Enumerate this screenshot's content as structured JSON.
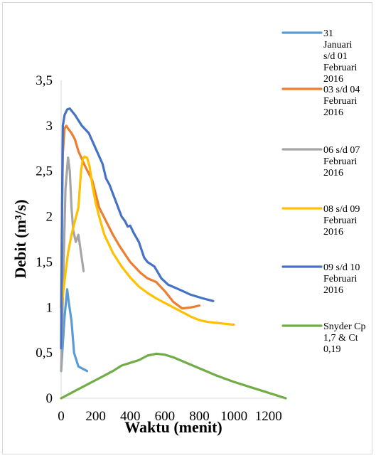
{
  "chart_data": {
    "type": "line",
    "xlabel": "Waktu (menit)",
    "ylabel": "Debit (m³/s)",
    "xlim": [
      0,
      1300
    ],
    "ylim": [
      0,
      3.5
    ],
    "x_ticks": [
      "0",
      "200",
      "400",
      "600",
      "800",
      "1000",
      "1200"
    ],
    "y_ticks": [
      "0",
      "0,5",
      "1",
      "1,5",
      "2",
      "2,5",
      "3",
      "3,5"
    ],
    "grid": false,
    "legend_position": "right",
    "series": [
      {
        "name": "31 Januari s/d 01 Februari 2016",
        "color": "#5b9bd5",
        "points": [
          [
            0,
            0.3
          ],
          [
            10,
            0.6
          ],
          [
            20,
            0.9
          ],
          [
            35,
            1.2
          ],
          [
            45,
            1.05
          ],
          [
            60,
            0.85
          ],
          [
            75,
            0.5
          ],
          [
            100,
            0.35
          ],
          [
            150,
            0.3
          ]
        ]
      },
      {
        "name": "03 s/d 04 Februari 2016",
        "color": "#ed7d31",
        "points": [
          [
            0,
            1.0
          ],
          [
            5,
            2.0
          ],
          [
            10,
            2.7
          ],
          [
            20,
            2.97
          ],
          [
            30,
            3.0
          ],
          [
            40,
            2.97
          ],
          [
            60,
            2.92
          ],
          [
            80,
            2.85
          ],
          [
            100,
            2.72
          ],
          [
            140,
            2.55
          ],
          [
            180,
            2.4
          ],
          [
            220,
            2.1
          ],
          [
            260,
            1.95
          ],
          [
            300,
            1.8
          ],
          [
            340,
            1.67
          ],
          [
            400,
            1.5
          ],
          [
            460,
            1.38
          ],
          [
            500,
            1.32
          ],
          [
            550,
            1.28
          ],
          [
            600,
            1.18
          ],
          [
            650,
            1.06
          ],
          [
            700,
            0.99
          ],
          [
            750,
            1.0
          ],
          [
            800,
            1.02
          ]
        ]
      },
      {
        "name": "06 s/d 07 Februari 2016",
        "color": "#a5a5a5",
        "points": [
          [
            0,
            0.3
          ],
          [
            15,
            1.5
          ],
          [
            25,
            2.3
          ],
          [
            40,
            2.65
          ],
          [
            50,
            2.5
          ],
          [
            60,
            2.1
          ],
          [
            70,
            1.85
          ],
          [
            85,
            1.72
          ],
          [
            100,
            1.8
          ],
          [
            115,
            1.6
          ],
          [
            130,
            1.4
          ]
        ]
      },
      {
        "name": "08 s/d 09 Februari 2016",
        "color": "#ffc000",
        "points": [
          [
            0,
            0.95
          ],
          [
            20,
            1.3
          ],
          [
            40,
            1.6
          ],
          [
            60,
            1.8
          ],
          [
            80,
            1.95
          ],
          [
            100,
            2.1
          ],
          [
            115,
            2.5
          ],
          [
            125,
            2.63
          ],
          [
            135,
            2.66
          ],
          [
            150,
            2.65
          ],
          [
            165,
            2.55
          ],
          [
            180,
            2.35
          ],
          [
            200,
            2.15
          ],
          [
            220,
            2.0
          ],
          [
            250,
            1.8
          ],
          [
            300,
            1.6
          ],
          [
            350,
            1.45
          ],
          [
            400,
            1.33
          ],
          [
            450,
            1.23
          ],
          [
            500,
            1.16
          ],
          [
            550,
            1.1
          ],
          [
            600,
            1.05
          ],
          [
            650,
            1.0
          ],
          [
            700,
            0.95
          ],
          [
            750,
            0.9
          ],
          [
            800,
            0.86
          ],
          [
            850,
            0.84
          ],
          [
            900,
            0.83
          ],
          [
            950,
            0.82
          ],
          [
            1000,
            0.81
          ]
        ]
      },
      {
        "name": "09 s/d 10 Februari 2016",
        "color": "#4472c4",
        "points": [
          [
            0,
            0.55
          ],
          [
            5,
            2.0
          ],
          [
            10,
            3.0
          ],
          [
            20,
            3.12
          ],
          [
            35,
            3.18
          ],
          [
            50,
            3.19
          ],
          [
            80,
            3.12
          ],
          [
            120,
            3.0
          ],
          [
            160,
            2.92
          ],
          [
            200,
            2.75
          ],
          [
            240,
            2.58
          ],
          [
            260,
            2.42
          ],
          [
            280,
            2.35
          ],
          [
            320,
            2.15
          ],
          [
            350,
            2.0
          ],
          [
            370,
            1.95
          ],
          [
            385,
            1.89
          ],
          [
            400,
            1.9
          ],
          [
            420,
            1.82
          ],
          [
            450,
            1.72
          ],
          [
            480,
            1.55
          ],
          [
            500,
            1.5
          ],
          [
            540,
            1.45
          ],
          [
            580,
            1.32
          ],
          [
            620,
            1.25
          ],
          [
            680,
            1.2
          ],
          [
            750,
            1.14
          ],
          [
            820,
            1.1
          ],
          [
            880,
            1.07
          ]
        ]
      },
      {
        "name": "Snyder Cp 1,7 & Ct 0,19",
        "color": "#70ad47",
        "points": [
          [
            0,
            0
          ],
          [
            100,
            0.1
          ],
          [
            200,
            0.2
          ],
          [
            300,
            0.3
          ],
          [
            350,
            0.36
          ],
          [
            400,
            0.39
          ],
          [
            450,
            0.42
          ],
          [
            500,
            0.47
          ],
          [
            550,
            0.49
          ],
          [
            600,
            0.48
          ],
          [
            650,
            0.45
          ],
          [
            700,
            0.41
          ],
          [
            800,
            0.33
          ],
          [
            900,
            0.25
          ],
          [
            1000,
            0.18
          ],
          [
            1100,
            0.12
          ],
          [
            1200,
            0.06
          ],
          [
            1300,
            0
          ]
        ]
      }
    ]
  }
}
